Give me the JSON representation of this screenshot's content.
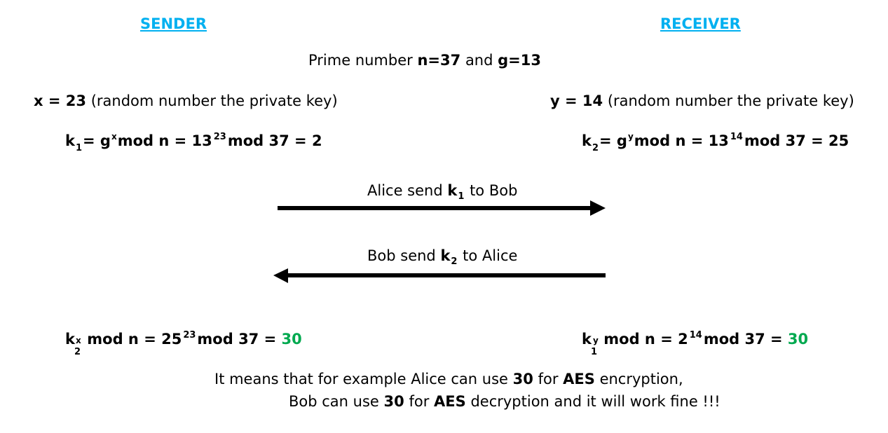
{
  "sender": {
    "header": "SENDER",
    "private_key_value": "x = 23",
    "private_key_desc": "(random number the private key)",
    "k_symbol": "k",
    "k_index": "1",
    "eq_prefix": "= g",
    "exponent": "x",
    "mod_part": "mod n = 13",
    "power": "23",
    "result_part": "mod 37 = 2",
    "shared_k": "k",
    "shared_k_index": "2",
    "shared_k_exp": "x",
    "shared_mod": "mod n = 25",
    "shared_power": "23",
    "shared_tail": "mod 37 =",
    "shared_result": "30"
  },
  "receiver": {
    "header": "RECEIVER",
    "private_key_value": "y = 14",
    "private_key_desc": "(random number the private key)",
    "k_symbol": "k",
    "k_index": "2",
    "eq_prefix": "= g",
    "exponent": "y",
    "mod_part": "mod n = 13",
    "power": "14",
    "result_part": "mod 37 = 25",
    "shared_k": "k",
    "shared_k_index": "1",
    "shared_k_exp": "y",
    "shared_mod": "mod n = 2",
    "shared_power": "14",
    "shared_tail": "mod 37 =",
    "shared_result": "30"
  },
  "params": {
    "prefix": "Prime number",
    "n": "n=37",
    "and": "and",
    "g": "g=13"
  },
  "messages": {
    "alice_prefix": "Alice send",
    "alice_k": "k",
    "alice_index": "1",
    "alice_suffix": "to Bob",
    "bob_prefix": "Bob send",
    "bob_k": "k",
    "bob_index": "2",
    "bob_suffix": "to Alice"
  },
  "conclusion": {
    "l1_a": "It means that for example Alice can use",
    "l1_b": "30",
    "l1_c": "for",
    "l1_d": "AES",
    "l1_e": "encryption,",
    "l2_a": "Bob can use",
    "l2_b": "30",
    "l2_c": "for",
    "l2_d": "AES",
    "l2_e": "decryption and it will work fine !!!"
  },
  "colors": {
    "header": "#00b0f0",
    "result": "#00a94f",
    "arrow": "#000000"
  }
}
